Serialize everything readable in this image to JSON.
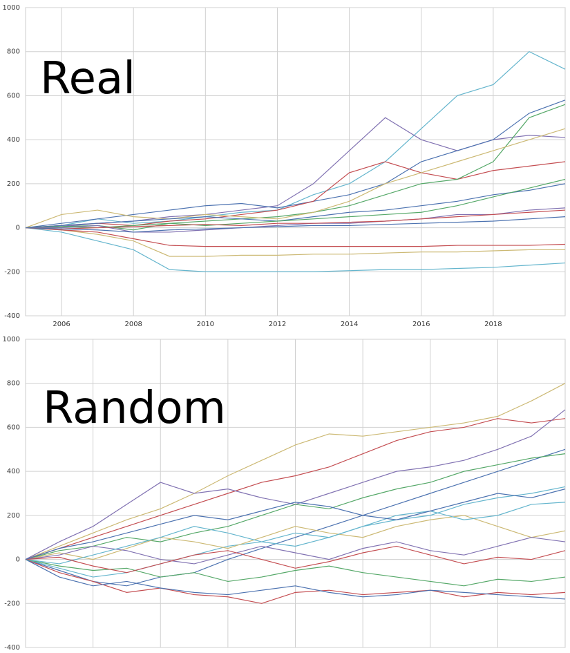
{
  "chart_data": [
    {
      "type": "line",
      "annotation": "Real",
      "x": [
        2005,
        2006,
        2007,
        2008,
        2009,
        2010,
        2011,
        2012,
        2013,
        2014,
        2015,
        2016,
        2017,
        2018,
        2019,
        2020
      ],
      "xlim": [
        2005,
        2020
      ],
      "xticks": [
        2006,
        2008,
        2010,
        2012,
        2014,
        2016,
        2018
      ],
      "show_xtick_labels": true,
      "ylim": [
        -400,
        1000
      ],
      "yticks": [
        -400,
        -200,
        0,
        200,
        400,
        600,
        800,
        1000
      ],
      "grid": true,
      "series": [
        {
          "color": "#64B5CD",
          "values": [
            0,
            10,
            40,
            20,
            30,
            50,
            70,
            80,
            150,
            200,
            300,
            450,
            600,
            650,
            800,
            720
          ]
        },
        {
          "color": "#8172B2",
          "values": [
            0,
            5,
            20,
            30,
            50,
            60,
            80,
            100,
            200,
            350,
            500,
            400,
            350,
            400,
            420,
            410
          ]
        },
        {
          "color": "#4C72B0",
          "values": [
            0,
            20,
            40,
            60,
            80,
            100,
            110,
            90,
            120,
            150,
            200,
            300,
            350,
            400,
            520,
            580
          ]
        },
        {
          "color": "#C44E52",
          "values": [
            0,
            10,
            20,
            10,
            30,
            40,
            60,
            80,
            120,
            250,
            300,
            250,
            220,
            260,
            280,
            300
          ]
        },
        {
          "color": "#55A868",
          "values": [
            0,
            5,
            10,
            -10,
            20,
            30,
            40,
            50,
            70,
            100,
            150,
            200,
            220,
            300,
            500,
            560
          ]
        },
        {
          "color": "#CCB974",
          "values": [
            0,
            60,
            80,
            50,
            40,
            60,
            50,
            40,
            70,
            120,
            200,
            250,
            300,
            350,
            400,
            450
          ]
        },
        {
          "color": "#64B5CD",
          "values": [
            0,
            -20,
            -60,
            -100,
            -190,
            -200,
            -200,
            -200,
            -200,
            -195,
            -190,
            -190,
            -185,
            -180,
            -170,
            -160
          ]
        },
        {
          "color": "#CCB974",
          "values": [
            0,
            -10,
            -30,
            -60,
            -130,
            -130,
            -125,
            -125,
            -120,
            -120,
            -115,
            -110,
            -110,
            -105,
            -100,
            -100
          ]
        },
        {
          "color": "#C44E52",
          "values": [
            0,
            -10,
            -20,
            -50,
            -80,
            -85,
            -85,
            -85,
            -85,
            -85,
            -85,
            -85,
            -80,
            -80,
            -80,
            -75
          ]
        },
        {
          "color": "#4C72B0",
          "values": [
            0,
            10,
            20,
            30,
            40,
            50,
            40,
            30,
            50,
            70,
            80,
            100,
            120,
            150,
            170,
            200
          ]
        },
        {
          "color": "#55A868",
          "values": [
            0,
            5,
            0,
            10,
            20,
            10,
            20,
            30,
            40,
            50,
            60,
            70,
            100,
            140,
            180,
            220
          ]
        },
        {
          "color": "#8172B2",
          "values": [
            0,
            0,
            10,
            -20,
            -20,
            -10,
            0,
            10,
            20,
            20,
            30,
            40,
            60,
            60,
            80,
            90
          ]
        },
        {
          "color": "#C44E52",
          "values": [
            0,
            -5,
            0,
            5,
            10,
            15,
            10,
            20,
            20,
            25,
            30,
            40,
            50,
            60,
            70,
            80
          ]
        },
        {
          "color": "#4C72B0",
          "values": [
            0,
            -5,
            -10,
            -20,
            -10,
            -5,
            0,
            5,
            10,
            10,
            15,
            20,
            25,
            30,
            40,
            50
          ]
        }
      ]
    },
    {
      "type": "line",
      "annotation": "Random",
      "x": [
        0,
        50,
        100,
        150,
        200,
        250,
        300,
        350,
        400,
        450,
        500,
        550,
        600,
        650,
        700,
        750,
        800
      ],
      "xlim": [
        0,
        800
      ],
      "xticks": [
        100,
        200,
        300,
        400,
        500,
        600,
        700
      ],
      "show_xtick_labels": false,
      "ylim": [
        -400,
        1000
      ],
      "yticks": [
        -400,
        -200,
        0,
        200,
        400,
        600,
        800,
        1000
      ],
      "grid": true,
      "series": [
        {
          "color": "#CCB974",
          "values": [
            0,
            60,
            120,
            180,
            230,
            300,
            380,
            450,
            520,
            570,
            560,
            580,
            600,
            620,
            650,
            720,
            800
          ]
        },
        {
          "color": "#C44E52",
          "values": [
            0,
            50,
            100,
            150,
            200,
            250,
            300,
            350,
            380,
            420,
            480,
            540,
            580,
            600,
            640,
            620,
            640
          ]
        },
        {
          "color": "#8172B2",
          "values": [
            0,
            80,
            150,
            250,
            350,
            300,
            320,
            280,
            250,
            300,
            350,
            400,
            420,
            450,
            500,
            560,
            680
          ]
        },
        {
          "color": "#4C72B0",
          "values": [
            0,
            -50,
            -100,
            -120,
            -80,
            -60,
            0,
            50,
            100,
            150,
            200,
            250,
            300,
            350,
            400,
            450,
            500
          ]
        },
        {
          "color": "#55A868",
          "values": [
            0,
            40,
            60,
            100,
            80,
            120,
            150,
            200,
            250,
            230,
            280,
            320,
            350,
            400,
            430,
            460,
            480
          ]
        },
        {
          "color": "#64B5CD",
          "values": [
            0,
            -40,
            -80,
            -60,
            -20,
            20,
            60,
            80,
            120,
            100,
            150,
            180,
            200,
            250,
            280,
            300,
            330
          ]
        },
        {
          "color": "#C44E52",
          "values": [
            0,
            -60,
            -100,
            -150,
            -130,
            -160,
            -170,
            -200,
            -150,
            -140,
            -160,
            -150,
            -140,
            -170,
            -150,
            -160,
            -150
          ]
        },
        {
          "color": "#4C72B0",
          "values": [
            0,
            -80,
            -120,
            -100,
            -130,
            -150,
            -160,
            -140,
            -120,
            -150,
            -170,
            -160,
            -140,
            -150,
            -160,
            -170,
            -180
          ]
        },
        {
          "color": "#CCB974",
          "values": [
            0,
            30,
            0,
            50,
            100,
            80,
            50,
            100,
            150,
            120,
            100,
            150,
            180,
            200,
            150,
            100,
            130
          ]
        },
        {
          "color": "#55A868",
          "values": [
            0,
            -30,
            -50,
            -40,
            -80,
            -60,
            -100,
            -80,
            -50,
            -30,
            -60,
            -80,
            -100,
            -120,
            -90,
            -100,
            -80
          ]
        },
        {
          "color": "#8172B2",
          "values": [
            0,
            20,
            60,
            40,
            0,
            -20,
            20,
            60,
            30,
            0,
            50,
            80,
            40,
            20,
            60,
            100,
            80
          ]
        },
        {
          "color": "#64B5CD",
          "values": [
            0,
            -20,
            20,
            60,
            100,
            150,
            120,
            80,
            60,
            100,
            150,
            200,
            220,
            180,
            200,
            250,
            260
          ]
        },
        {
          "color": "#C44E52",
          "values": [
            0,
            10,
            -30,
            -60,
            -20,
            20,
            40,
            0,
            -40,
            -10,
            30,
            60,
            20,
            -20,
            10,
            0,
            40
          ]
        },
        {
          "color": "#4C72B0",
          "values": [
            0,
            50,
            80,
            120,
            160,
            200,
            180,
            220,
            260,
            240,
            200,
            180,
            220,
            260,
            300,
            280,
            320
          ]
        }
      ]
    }
  ]
}
